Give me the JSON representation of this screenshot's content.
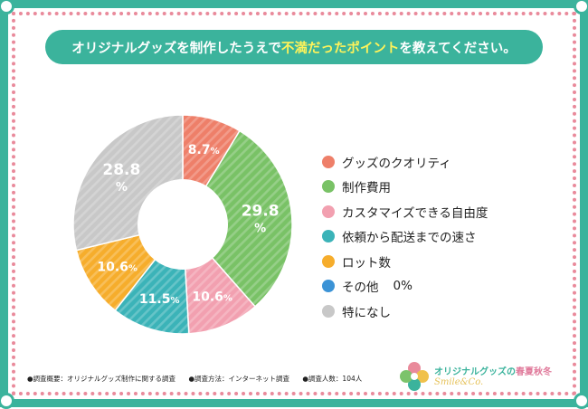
{
  "header": {
    "title_before": "オリジナルグッズを制作したうえで",
    "title_highlight": "不満だったポイント",
    "title_after": "を教えてください。"
  },
  "chart_data": {
    "type": "pie",
    "donut": true,
    "title": "オリジナルグッズを制作したうえで不満だったポイントを教えてください。",
    "start_angle_deg": 0,
    "direction": "clockwise",
    "unit": "%",
    "categories": [
      "グッズのクオリティ",
      "制作費用",
      "カスタマイズできる自由度",
      "依頼から配送までの速さ",
      "ロット数",
      "その他",
      "特になし"
    ],
    "values": [
      8.7,
      29.8,
      10.6,
      11.5,
      10.6,
      0,
      28.8
    ],
    "slice_labels": [
      "8.7",
      "29.8",
      "10.6",
      "11.5",
      "10.6",
      "",
      "28.8"
    ],
    "colors": [
      "#ee7f69",
      "#79c266",
      "#f2a0b0",
      "#3bb3b8",
      "#f6ad2c",
      "#3b93d6",
      "#c8c8c8"
    ],
    "legend_position": "right"
  },
  "legend": {
    "items": [
      {
        "label": "グッズのクオリティ",
        "value": ""
      },
      {
        "label": "制作費用",
        "value": ""
      },
      {
        "label": "カスタマイズできる自由度",
        "value": ""
      },
      {
        "label": "依頼から配送までの速さ",
        "value": ""
      },
      {
        "label": "ロット数",
        "value": ""
      },
      {
        "label": "その他",
        "value": "0%"
      },
      {
        "label": "特になし",
        "value": ""
      }
    ]
  },
  "footer": {
    "summary": "●調査概要：オリジナルグッズ制作に関する調査",
    "method": "●調査方法：インターネット調査",
    "respondents": "●調査人数：104人"
  },
  "logo": {
    "name": "オリジナルグッズの",
    "season": "春夏秋冬",
    "sub": "Smile&Co."
  }
}
